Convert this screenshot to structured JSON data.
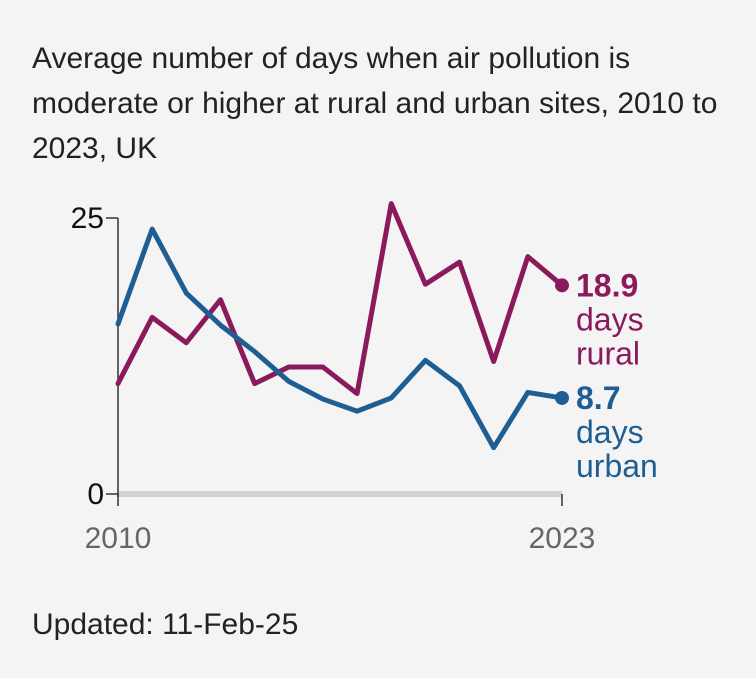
{
  "title": "Average number of days when air pollution is moderate or higher at rural and urban sites, 2010 to 2023, UK",
  "updated": "Updated: 11-Feb-25",
  "colors": {
    "rural": "#8a1a5b",
    "urban": "#1f5e93",
    "axis": "#333333",
    "xaxis_bar": "#d3d3d3",
    "tick_text_x": "#666666",
    "tick_text_y": "#111111"
  },
  "chart_data": {
    "type": "line",
    "x": [
      2010,
      2011,
      2012,
      2013,
      2014,
      2015,
      2016,
      2017,
      2018,
      2019,
      2020,
      2021,
      2022,
      2023
    ],
    "xlim": [
      2010,
      2023
    ],
    "ylim": [
      0,
      25
    ],
    "x_ticks": [
      "2010",
      "2023"
    ],
    "y_ticks": [
      "0",
      "25"
    ],
    "grid": false,
    "legend": "none",
    "series": [
      {
        "key": "rural",
        "values": [
          10.0,
          16.0,
          13.7,
          17.6,
          10.0,
          11.5,
          11.5,
          9.1,
          26.3,
          19.0,
          21.0,
          12.0,
          21.5,
          18.9
        ],
        "end_value": "18.9",
        "end_label_lines": [
          "days",
          "rural"
        ]
      },
      {
        "key": "urban",
        "values": [
          15.4,
          24.0,
          18.2,
          15.3,
          12.9,
          10.2,
          8.6,
          7.5,
          8.7,
          12.1,
          9.8,
          4.2,
          9.2,
          8.7
        ],
        "end_value": "8.7",
        "end_label_lines": [
          "days",
          "urban"
        ]
      }
    ]
  }
}
